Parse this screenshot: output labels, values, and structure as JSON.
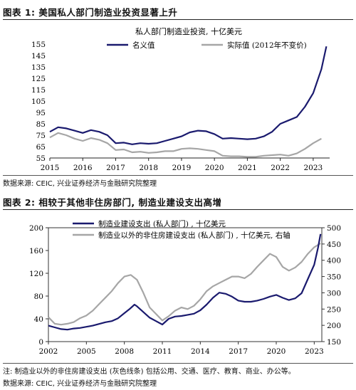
{
  "figures": [
    {
      "title": "图表 1:  美国私人部门制造业投资显著上升",
      "source": "数据来源:  CEIC,  兴业证券经济与金融研究院整理"
    },
    {
      "title": "图表 2:  相较于其他非住房部门,  制造业建设支出高增",
      "footnote": "注:  制造业以外的非住房建设支出 (灰色线条) 包括公用、交通、医疗、教育、商业、办公等。",
      "source": "数据来源:  CEIC,  兴业证券经济与金融研究院整理"
    }
  ],
  "chart_data": [
    {
      "type": "line",
      "title": "私人部门制造业投资, 十亿美元",
      "legend_position": "top",
      "ylim": [
        55,
        155
      ],
      "yticks": [
        "55",
        "65",
        "75",
        "85",
        "95",
        "105",
        "115",
        "125",
        "135",
        "145",
        "155"
      ],
      "xlim": [
        2015,
        2023.5
      ],
      "xticks": [
        "2015",
        "2016",
        "2017",
        "2018",
        "2019",
        "2020",
        "2021",
        "2022",
        "2023"
      ],
      "colors": {
        "nominal": "#1a1a6e",
        "real": "#a6a6a6"
      },
      "series": [
        {
          "name": "名义值",
          "points": [
            [
              2015,
              78
            ],
            [
              2015.25,
              82
            ],
            [
              2015.5,
              81
            ],
            [
              2015.75,
              79
            ],
            [
              2016,
              77
            ],
            [
              2016.25,
              79.5
            ],
            [
              2016.5,
              78
            ],
            [
              2016.75,
              75
            ],
            [
              2017,
              68
            ],
            [
              2017.25,
              68.5
            ],
            [
              2017.5,
              67
            ],
            [
              2017.75,
              68
            ],
            [
              2018,
              67.5
            ],
            [
              2018.25,
              68
            ],
            [
              2018.5,
              70
            ],
            [
              2018.75,
              72
            ],
            [
              2019,
              74
            ],
            [
              2019.25,
              77.5
            ],
            [
              2019.5,
              79
            ],
            [
              2019.75,
              78.5
            ],
            [
              2020,
              76
            ],
            [
              2020.25,
              72
            ],
            [
              2020.5,
              72.5
            ],
            [
              2020.75,
              72
            ],
            [
              2021,
              71.5
            ],
            [
              2021.25,
              72
            ],
            [
              2021.5,
              74
            ],
            [
              2021.75,
              78
            ],
            [
              2022,
              85
            ],
            [
              2022.25,
              88
            ],
            [
              2022.5,
              91
            ],
            [
              2022.75,
              100
            ],
            [
              2023,
              112
            ],
            [
              2023.25,
              133
            ],
            [
              2023.4,
              153
            ]
          ]
        },
        {
          "name": "实际值 (2012年不变价)",
          "points": [
            [
              2015,
              73
            ],
            [
              2015.25,
              77
            ],
            [
              2015.5,
              75
            ],
            [
              2015.75,
              72
            ],
            [
              2016,
              70
            ],
            [
              2016.25,
              72.5
            ],
            [
              2016.5,
              71
            ],
            [
              2016.75,
              68
            ],
            [
              2017,
              62
            ],
            [
              2017.25,
              62.5
            ],
            [
              2017.5,
              60
            ],
            [
              2017.75,
              60.5
            ],
            [
              2018,
              59.5
            ],
            [
              2018.25,
              60
            ],
            [
              2018.5,
              61
            ],
            [
              2018.75,
              61
            ],
            [
              2019,
              63
            ],
            [
              2019.25,
              63.5
            ],
            [
              2019.5,
              63
            ],
            [
              2019.75,
              62
            ],
            [
              2020,
              61
            ],
            [
              2020.25,
              57
            ],
            [
              2020.5,
              56.5
            ],
            [
              2020.75,
              56.5
            ],
            [
              2021,
              56
            ],
            [
              2021.25,
              56
            ],
            [
              2021.5,
              57
            ],
            [
              2021.75,
              57.5
            ],
            [
              2022,
              58
            ],
            [
              2022.25,
              57
            ],
            [
              2022.5,
              59
            ],
            [
              2022.75,
              63
            ],
            [
              2023,
              68
            ],
            [
              2023.25,
              72
            ]
          ]
        }
      ]
    },
    {
      "type": "line",
      "title": "",
      "legend_position": "top",
      "ylim": [
        0,
        200
      ],
      "yticks": [
        "0",
        "40",
        "80",
        "120",
        "160",
        "200"
      ],
      "y2lim": [
        150,
        500
      ],
      "y2ticks": [
        "150",
        "200",
        "250",
        "300",
        "350",
        "400",
        "450",
        "500"
      ],
      "xlim": [
        2002,
        2023.6
      ],
      "xticks": [
        "2002",
        "2005",
        "2008",
        "2011",
        "2014",
        "2017",
        "2020",
        "2023"
      ],
      "colors": {
        "manufacturing": "#1a1a6e",
        "other": "#a6a6a6"
      },
      "series": [
        {
          "name": "制造业建设支出 (私人部门) , 十亿美元",
          "axis": "left",
          "points": [
            [
              2002,
              28
            ],
            [
              2002.5,
              25
            ],
            [
              2003,
              22
            ],
            [
              2003.5,
              21
            ],
            [
              2004,
              23
            ],
            [
              2004.5,
              24
            ],
            [
              2005,
              26
            ],
            [
              2005.5,
              28
            ],
            [
              2006,
              31
            ],
            [
              2006.5,
              34
            ],
            [
              2007,
              36
            ],
            [
              2007.5,
              41
            ],
            [
              2008,
              50
            ],
            [
              2008.4,
              57
            ],
            [
              2008.8,
              65
            ],
            [
              2009,
              62
            ],
            [
              2009.5,
              52
            ],
            [
              2010,
              42
            ],
            [
              2010.5,
              36
            ],
            [
              2011,
              30
            ],
            [
              2011.5,
              40
            ],
            [
              2012,
              44
            ],
            [
              2012.5,
              45
            ],
            [
              2013,
              47
            ],
            [
              2013.5,
              49
            ],
            [
              2014,
              55
            ],
            [
              2014.5,
              65
            ],
            [
              2015,
              77
            ],
            [
              2015.5,
              86
            ],
            [
              2016,
              84
            ],
            [
              2016.5,
              79
            ],
            [
              2017,
              72
            ],
            [
              2017.5,
              70
            ],
            [
              2018,
              70
            ],
            [
              2018.5,
              72
            ],
            [
              2019,
              75
            ],
            [
              2019.5,
              79
            ],
            [
              2020,
              82
            ],
            [
              2020.5,
              77
            ],
            [
              2021,
              73
            ],
            [
              2021.5,
              76
            ],
            [
              2022,
              85
            ],
            [
              2022.5,
              110
            ],
            [
              2023,
              135
            ],
            [
              2023.3,
              165
            ],
            [
              2023.5,
              189
            ]
          ]
        },
        {
          "name": "制造业以外的非住房建设支出 (私人部门) , 十亿美元, 右轴",
          "axis": "right",
          "points": [
            [
              2002,
              225
            ],
            [
              2002.5,
              205
            ],
            [
              2003,
              202
            ],
            [
              2003.5,
              205
            ],
            [
              2004,
              210
            ],
            [
              2004.5,
              222
            ],
            [
              2005,
              230
            ],
            [
              2005.5,
              245
            ],
            [
              2006,
              265
            ],
            [
              2006.5,
              285
            ],
            [
              2007,
              305
            ],
            [
              2007.5,
              330
            ],
            [
              2008,
              350
            ],
            [
              2008.5,
              355
            ],
            [
              2009,
              340
            ],
            [
              2009.5,
              300
            ],
            [
              2010,
              255
            ],
            [
              2010.5,
              235
            ],
            [
              2011,
              215
            ],
            [
              2011.5,
              228
            ],
            [
              2012,
              245
            ],
            [
              2012.5,
              255
            ],
            [
              2013,
              250
            ],
            [
              2013.5,
              260
            ],
            [
              2014,
              280
            ],
            [
              2014.5,
              305
            ],
            [
              2015,
              320
            ],
            [
              2015.5,
              330
            ],
            [
              2016,
              340
            ],
            [
              2016.5,
              350
            ],
            [
              2017,
              350
            ],
            [
              2017.5,
              345
            ],
            [
              2018,
              358
            ],
            [
              2018.5,
              380
            ],
            [
              2019,
              400
            ],
            [
              2019.5,
              420
            ],
            [
              2020,
              410
            ],
            [
              2020.5,
              380
            ],
            [
              2021,
              368
            ],
            [
              2021.5,
              378
            ],
            [
              2022,
              395
            ],
            [
              2022.5,
              420
            ],
            [
              2023,
              440
            ],
            [
              2023.5,
              452
            ]
          ]
        }
      ]
    }
  ]
}
